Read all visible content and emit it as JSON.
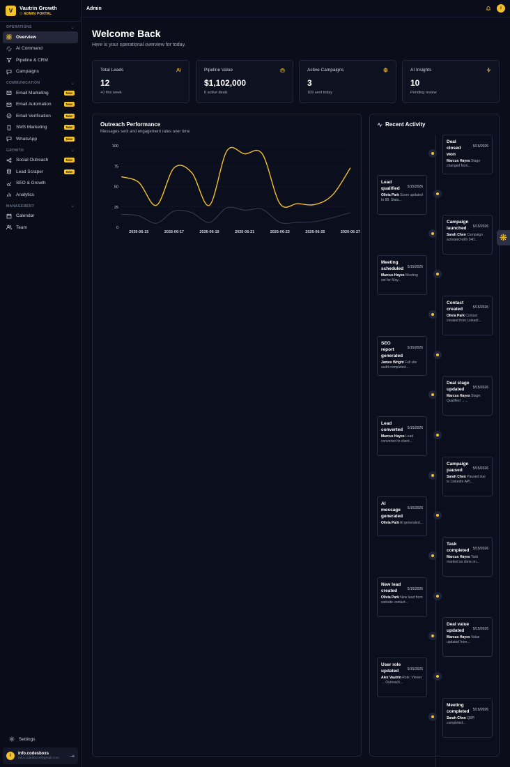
{
  "brand": {
    "logo_letter": "V",
    "name": "Vautrin Growth",
    "subtitle": "ADMIN PORTAL"
  },
  "sidebar": {
    "sections": [
      {
        "label": "OPERATIONS",
        "items": [
          {
            "label": "Overview",
            "icon": "grid-icon",
            "active": true
          },
          {
            "label": "AI Command",
            "icon": "sparkle-icon"
          },
          {
            "label": "Pipeline & CRM",
            "icon": "filter-icon"
          },
          {
            "label": "Campaigns",
            "icon": "chat-icon"
          }
        ]
      },
      {
        "label": "COMMUNICATION",
        "items": [
          {
            "label": "Email Marketing",
            "icon": "mail-icon",
            "badge": "New"
          },
          {
            "label": "Email Automation",
            "icon": "mail-icon",
            "badge": "New"
          },
          {
            "label": "Email Verification",
            "icon": "check-circle-icon",
            "badge": "New"
          },
          {
            "label": "SMS Marketing",
            "icon": "phone-icon",
            "badge": "New"
          },
          {
            "label": "WhatsApp",
            "icon": "chat-icon",
            "badge": "New"
          }
        ]
      },
      {
        "label": "GROWTH",
        "items": [
          {
            "label": "Social Outreach",
            "icon": "share-icon",
            "badge": "New"
          },
          {
            "label": "Lead Scraper",
            "icon": "database-icon",
            "badge": "New"
          },
          {
            "label": "SEO & Growth",
            "icon": "trend-icon"
          },
          {
            "label": "Analytics",
            "icon": "bar-chart-icon"
          }
        ]
      },
      {
        "label": "MANAGEMENT",
        "items": [
          {
            "label": "Calendar",
            "icon": "calendar-icon"
          },
          {
            "label": "Team",
            "icon": "users-icon"
          }
        ]
      }
    ],
    "settings_label": "Settings",
    "user": {
      "initial": "i",
      "name": "info.codesboxs",
      "email": "info.codesboxs@gmail.com"
    }
  },
  "topbar": {
    "title": "Admin",
    "avatar_initial": "i"
  },
  "welcome": {
    "title": "Welcome Back",
    "subtitle": "Here is your operational overview for today."
  },
  "stats": [
    {
      "label": "Total Leads",
      "value": "12",
      "sub": "+0 this week",
      "icon": "users-icon"
    },
    {
      "label": "Pipeline Value",
      "value": "$1,102,000",
      "sub": "6 active deals",
      "icon": "briefcase-icon"
    },
    {
      "label": "Active Campaigns",
      "value": "3",
      "sub": "169 sent today",
      "icon": "globe-icon"
    },
    {
      "label": "AI Insights",
      "value": "10",
      "sub": "Pending review",
      "icon": "zap-icon"
    }
  ],
  "outreach": {
    "title": "Outreach Performance",
    "subtitle": "Messages sent and engagement rates over time"
  },
  "chart_data": {
    "type": "line",
    "x": [
      "2026-06-14",
      "2026-06-15",
      "2026-06-16",
      "2026-06-17",
      "2026-06-18",
      "2026-06-19",
      "2026-06-20",
      "2026-06-21",
      "2026-06-22",
      "2026-06-23",
      "2026-06-24",
      "2026-06-25",
      "2026-06-26",
      "2026-06-27"
    ],
    "x_tick_labels": [
      "2026-06-15",
      "2026-06-17",
      "2026-06-19",
      "2026-06-21",
      "2026-06-23",
      "2026-06-25",
      "2026-06-27"
    ],
    "series": [
      {
        "color": "#f2c12e",
        "values": [
          62,
          55,
          27,
          73,
          67,
          27,
          94,
          90,
          90,
          29,
          29,
          28,
          40,
          73
        ]
      },
      {
        "color": "#3a3f55",
        "values": [
          16,
          14,
          5,
          20,
          18,
          6,
          24,
          21,
          22,
          6,
          6,
          7,
          12,
          18
        ]
      }
    ],
    "y_ticks": [
      0,
      25,
      50,
      75,
      100
    ],
    "ylim": [
      0,
      100
    ],
    "grid": true
  },
  "activity": {
    "title": "Recent Activity",
    "items": [
      {
        "title": "Deal closed won",
        "date": "5/15/2026",
        "user": "Marcus Hayes",
        "text": "Stage changed from...",
        "side": "right"
      },
      {
        "title": "Lead qualified",
        "date": "5/15/2026",
        "user": "Olivia Park",
        "text": "Score updated to 88. Statu...",
        "side": "left"
      },
      {
        "title": "Campaign launched",
        "date": "5/15/2026",
        "user": "Sarah Chen",
        "text": "Campaign activated with 340...",
        "side": "right"
      },
      {
        "title": "Meeting scheduled",
        "date": "5/15/2026",
        "user": "Marcus Hayes",
        "text": "Meeting set for May...",
        "side": "left"
      },
      {
        "title": "Contact created",
        "date": "5/15/2026",
        "user": "Olivia Park",
        "text": "Contact created from LinkedI...",
        "side": "right"
      },
      {
        "title": "SEO report generated",
        "date": "5/15/2026",
        "user": "James Wright",
        "text": "Full site audit completed....",
        "side": "left"
      },
      {
        "title": "Deal stage updated",
        "date": "5/15/2026",
        "user": "Marcus Hayes",
        "text": "Stage: Qualified →...",
        "side": "right"
      },
      {
        "title": "Lead converted",
        "date": "5/15/2026",
        "user": "Marcus Hayes",
        "text": "Lead converted to client...",
        "side": "left"
      },
      {
        "title": "Campaign paused",
        "date": "5/15/2026",
        "user": "Sarah Chen",
        "text": "Paused due to LinkedIn API...",
        "side": "right"
      },
      {
        "title": "AI message generated",
        "date": "5/15/2026",
        "user": "Olivia Park",
        "text": "AI generated...",
        "side": "left"
      },
      {
        "title": "Task completed",
        "date": "5/15/2026",
        "user": "Marcus Hayes",
        "text": "Task marked as done on...",
        "side": "right"
      },
      {
        "title": "New lead created",
        "date": "5/15/2026",
        "user": "Olivia Park",
        "text": "New lead from website contact...",
        "side": "left"
      },
      {
        "title": "Deal value updated",
        "date": "5/15/2026",
        "user": "Marcus Hayes",
        "text": "Value updated from...",
        "side": "right"
      },
      {
        "title": "User role updated",
        "date": "5/15/2026",
        "user": "Alex Vautrin",
        "text": "Role: Viewer → Outreach...",
        "side": "left"
      },
      {
        "title": "Meeting completed",
        "date": "5/15/2026",
        "user": "Sarah Chen",
        "text": "QBR completed...",
        "side": "right"
      }
    ]
  },
  "float_button": {
    "icon": "asterisk-icon",
    "glyph": "❋"
  },
  "colors": {
    "accent": "#f2c12e",
    "background": "#0b0d1a"
  }
}
